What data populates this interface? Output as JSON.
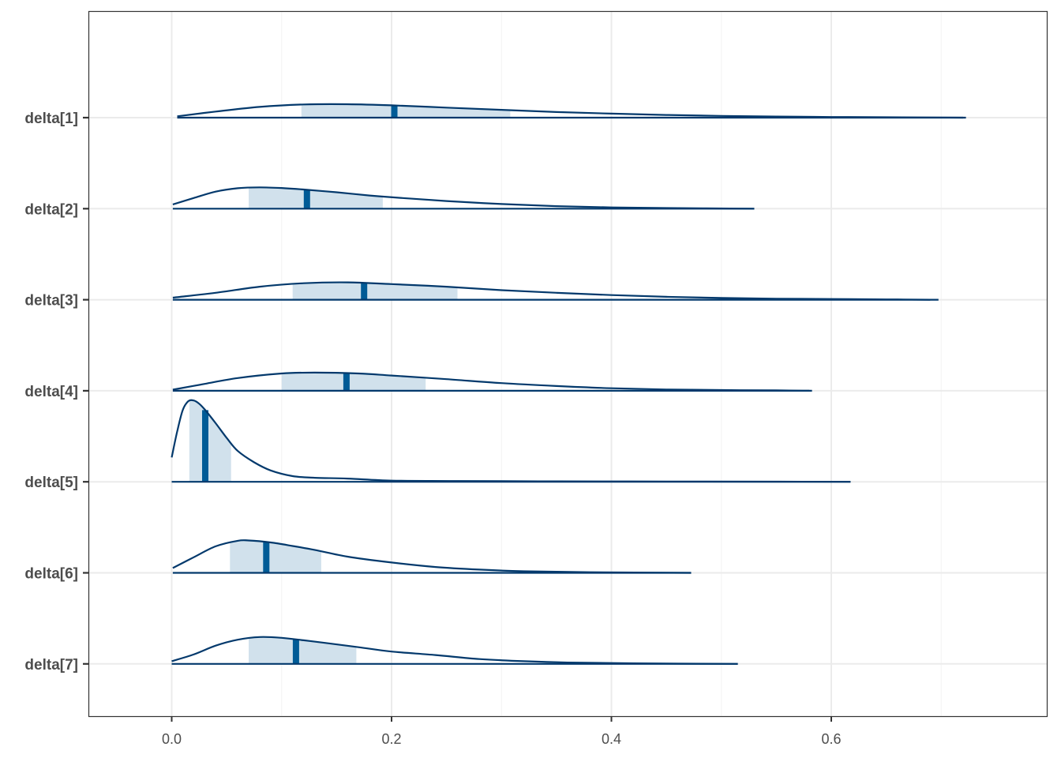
{
  "chart_data": {
    "type": "ridgeline",
    "xlim": [
      -0.075,
      0.7825
    ],
    "xticks": [
      0.0,
      0.2,
      0.4,
      0.6
    ],
    "xtick_labels": [
      "0.0",
      "0.2",
      "0.4",
      "0.6"
    ],
    "grid": true,
    "colors": {
      "line": "#03396c",
      "interval_fill": "#d1e1ec",
      "median": "#005b96",
      "grid_major": "#ebebeb",
      "grid_minor": "#f5f5f5",
      "panel_border": "#333333"
    },
    "series": [
      {
        "label": "delta[1]",
        "median": 0.2025,
        "inner_interval": [
          0.118,
          0.308
        ],
        "range": [
          0.005,
          0.7225
        ],
        "density": [
          [
            0.005,
            0.1
          ],
          [
            0.04,
            0.45
          ],
          [
            0.08,
            0.8
          ],
          [
            0.12,
            0.98
          ],
          [
            0.16,
            1.0
          ],
          [
            0.2,
            0.92
          ],
          [
            0.25,
            0.75
          ],
          [
            0.3,
            0.58
          ],
          [
            0.35,
            0.42
          ],
          [
            0.4,
            0.3
          ],
          [
            0.45,
            0.2
          ],
          [
            0.5,
            0.13
          ],
          [
            0.55,
            0.08
          ],
          [
            0.6,
            0.05
          ],
          [
            0.65,
            0.03
          ],
          [
            0.72,
            0.0
          ]
        ]
      },
      {
        "label": "delta[2]",
        "median": 0.123,
        "inner_interval": [
          0.07,
          0.192
        ],
        "range": [
          0.001,
          0.53
        ],
        "density": [
          [
            0.001,
            0.2
          ],
          [
            0.02,
            0.5
          ],
          [
            0.04,
            0.8
          ],
          [
            0.06,
            0.96
          ],
          [
            0.08,
            1.0
          ],
          [
            0.1,
            0.97
          ],
          [
            0.12,
            0.9
          ],
          [
            0.15,
            0.77
          ],
          [
            0.18,
            0.62
          ],
          [
            0.21,
            0.5
          ],
          [
            0.25,
            0.36
          ],
          [
            0.3,
            0.22
          ],
          [
            0.35,
            0.12
          ],
          [
            0.4,
            0.06
          ],
          [
            0.45,
            0.03
          ],
          [
            0.53,
            0.0
          ]
        ]
      },
      {
        "label": "delta[3]",
        "median": 0.175,
        "inner_interval": [
          0.11,
          0.26
        ],
        "range": [
          0.001,
          0.6975
        ],
        "density": [
          [
            0.001,
            0.12
          ],
          [
            0.04,
            0.4
          ],
          [
            0.08,
            0.75
          ],
          [
            0.12,
            0.95
          ],
          [
            0.16,
            1.0
          ],
          [
            0.2,
            0.9
          ],
          [
            0.25,
            0.75
          ],
          [
            0.3,
            0.55
          ],
          [
            0.35,
            0.4
          ],
          [
            0.4,
            0.27
          ],
          [
            0.45,
            0.17
          ],
          [
            0.5,
            0.1
          ],
          [
            0.55,
            0.06
          ],
          [
            0.6,
            0.04
          ],
          [
            0.65,
            0.02
          ],
          [
            0.69,
            0.0
          ]
        ]
      },
      {
        "label": "delta[4]",
        "median": 0.159,
        "inner_interval": [
          0.1,
          0.231
        ],
        "range": [
          0.001,
          0.5825
        ],
        "density": [
          [
            0.001,
            0.06
          ],
          [
            0.03,
            0.38
          ],
          [
            0.06,
            0.7
          ],
          [
            0.1,
            0.95
          ],
          [
            0.13,
            1.0
          ],
          [
            0.17,
            0.95
          ],
          [
            0.2,
            0.84
          ],
          [
            0.25,
            0.64
          ],
          [
            0.3,
            0.42
          ],
          [
            0.35,
            0.26
          ],
          [
            0.4,
            0.14
          ],
          [
            0.45,
            0.07
          ],
          [
            0.5,
            0.04
          ],
          [
            0.55,
            0.02
          ],
          [
            0.58,
            0.0
          ]
        ]
      },
      {
        "label": "delta[5]",
        "median": 0.0305,
        "inner_interval": [
          0.016,
          0.054
        ],
        "range": [
          0.0,
          0.6175
        ],
        "density": [
          [
            0.0,
            0.3
          ],
          [
            0.005,
            0.62
          ],
          [
            0.01,
            0.88
          ],
          [
            0.015,
            0.99
          ],
          [
            0.02,
            1.0
          ],
          [
            0.025,
            0.96
          ],
          [
            0.03,
            0.89
          ],
          [
            0.04,
            0.72
          ],
          [
            0.05,
            0.54
          ],
          [
            0.06,
            0.38
          ],
          [
            0.075,
            0.24
          ],
          [
            0.09,
            0.14
          ],
          [
            0.11,
            0.07
          ],
          [
            0.13,
            0.05
          ],
          [
            0.16,
            0.04
          ],
          [
            0.2,
            0.015
          ],
          [
            0.26,
            0.01
          ],
          [
            0.35,
            0.006
          ],
          [
            0.45,
            0.004
          ],
          [
            0.55,
            0.002
          ],
          [
            0.6175,
            0.0
          ]
        ]
      },
      {
        "label": "delta[6]",
        "median": 0.086,
        "inner_interval": [
          0.053,
          0.136
        ],
        "range": [
          0.001,
          0.4725
        ],
        "density": [
          [
            0.001,
            0.15
          ],
          [
            0.02,
            0.48
          ],
          [
            0.04,
            0.82
          ],
          [
            0.06,
            0.99
          ],
          [
            0.07,
            1.0
          ],
          [
            0.09,
            0.94
          ],
          [
            0.11,
            0.83
          ],
          [
            0.13,
            0.71
          ],
          [
            0.16,
            0.5
          ],
          [
            0.2,
            0.32
          ],
          [
            0.24,
            0.18
          ],
          [
            0.28,
            0.1
          ],
          [
            0.32,
            0.05
          ],
          [
            0.38,
            0.02
          ],
          [
            0.4725,
            0.0
          ]
        ]
      },
      {
        "label": "delta[7]",
        "median": 0.113,
        "inner_interval": [
          0.07,
          0.168
        ],
        "range": [
          0.0,
          0.515
        ],
        "density": [
          [
            0.0,
            0.1
          ],
          [
            0.02,
            0.35
          ],
          [
            0.04,
            0.68
          ],
          [
            0.06,
            0.9
          ],
          [
            0.08,
            1.0
          ],
          [
            0.1,
            0.97
          ],
          [
            0.12,
            0.88
          ],
          [
            0.14,
            0.78
          ],
          [
            0.17,
            0.62
          ],
          [
            0.2,
            0.46
          ],
          [
            0.24,
            0.33
          ],
          [
            0.28,
            0.18
          ],
          [
            0.32,
            0.1
          ],
          [
            0.36,
            0.05
          ],
          [
            0.42,
            0.02
          ],
          [
            0.515,
            0.0
          ]
        ]
      }
    ]
  }
}
